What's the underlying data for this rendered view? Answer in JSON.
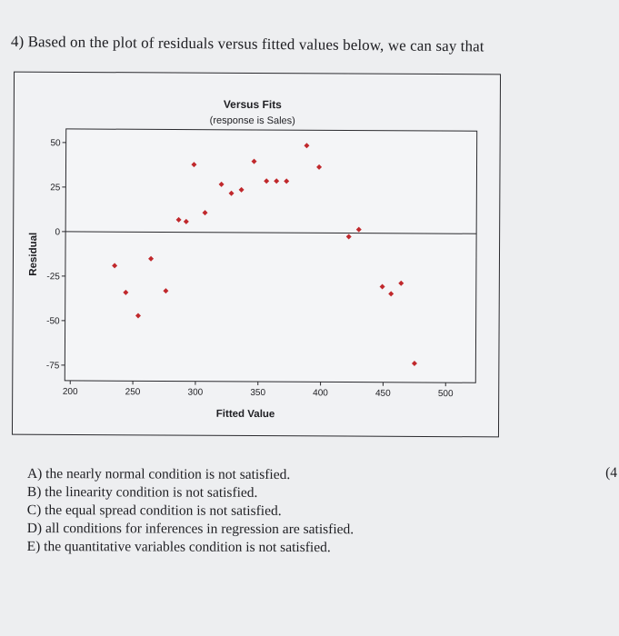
{
  "question": {
    "number": "4)",
    "text": "Based on the plot of residuals versus fitted values below, we can say that"
  },
  "points_label": "(4",
  "options": [
    {
      "letter": "A)",
      "text": "the nearly normal condition is not satisfied."
    },
    {
      "letter": "B)",
      "text": "the linearity condition is not satisfied."
    },
    {
      "letter": "C)",
      "text": "the equal spread condition is not satisfied."
    },
    {
      "letter": "D)",
      "text": "all conditions for inferences in regression are satisfied."
    },
    {
      "letter": "E)",
      "text": "the quantitative variables condition is not satisfied."
    }
  ],
  "chart_data": {
    "type": "scatter",
    "title": "Versus Fits",
    "subtitle": "(response is Sales)",
    "xlabel": "Fitted Value",
    "ylabel": "Residual",
    "xlim": [
      200,
      500
    ],
    "ylim": [
      -80,
      60
    ],
    "x_ticks": [
      200,
      250,
      300,
      350,
      400,
      450,
      500
    ],
    "y_ticks": [
      50,
      25,
      0,
      -25,
      -50,
      -75
    ],
    "reference_line_y": 0,
    "grid": false,
    "point_color": "#c0282c",
    "points": [
      {
        "x": 235,
        "y": -19
      },
      {
        "x": 244,
        "y": -34
      },
      {
        "x": 254,
        "y": -47
      },
      {
        "x": 264,
        "y": -15
      },
      {
        "x": 276,
        "y": -33
      },
      {
        "x": 286,
        "y": 7
      },
      {
        "x": 292,
        "y": 6
      },
      {
        "x": 298,
        "y": 38
      },
      {
        "x": 307,
        "y": 11
      },
      {
        "x": 320,
        "y": 27
      },
      {
        "x": 328,
        "y": 22
      },
      {
        "x": 336,
        "y": 24
      },
      {
        "x": 346,
        "y": 40
      },
      {
        "x": 356,
        "y": 29
      },
      {
        "x": 364,
        "y": 29
      },
      {
        "x": 372,
        "y": 29
      },
      {
        "x": 388,
        "y": 49
      },
      {
        "x": 398,
        "y": 37
      },
      {
        "x": 422,
        "y": -2
      },
      {
        "x": 430,
        "y": 2
      },
      {
        "x": 449,
        "y": -30
      },
      {
        "x": 456,
        "y": -34
      },
      {
        "x": 464,
        "y": -28
      },
      {
        "x": 475,
        "y": -73
      }
    ]
  }
}
